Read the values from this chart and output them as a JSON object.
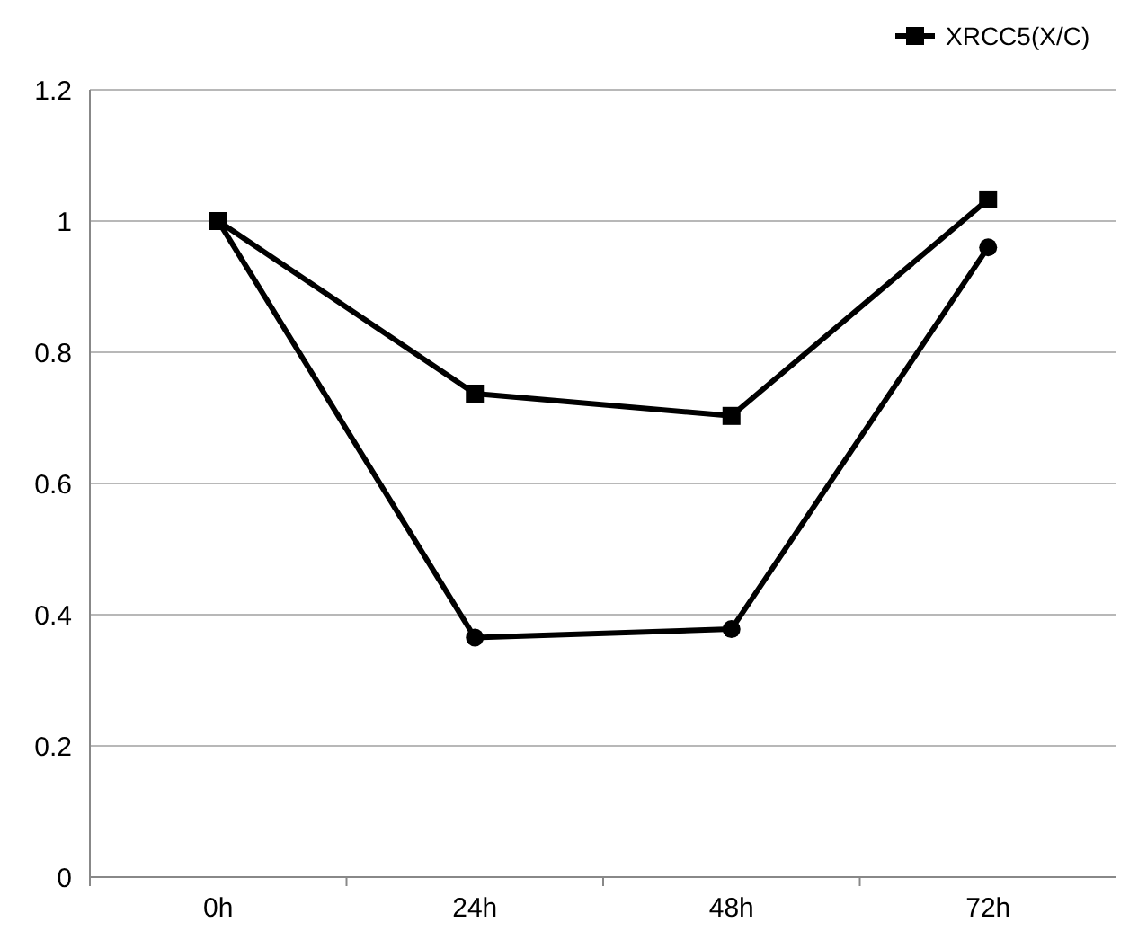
{
  "chart_data": {
    "type": "line",
    "categories": [
      "0h",
      "24h",
      "48h",
      "72h"
    ],
    "series": [
      {
        "color": "#000000",
        "marker": "circle",
        "values": [
          1,
          0.365,
          0.378,
          0.96
        ]
      },
      {
        "name": "XRCC5(X/C)",
        "color": "#000000",
        "marker": "square",
        "values": [
          1,
          0.737,
          0.703,
          1.033
        ]
      }
    ],
    "ylim": [
      0,
      1.2
    ],
    "yticks": [
      0,
      0.2,
      0.4,
      0.6,
      0.8,
      1,
      1.2
    ],
    "grid": "y",
    "legend": "top right"
  }
}
